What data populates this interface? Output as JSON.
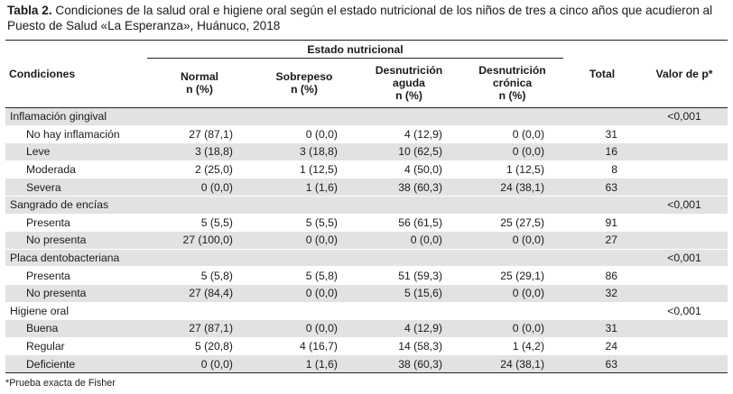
{
  "caption": {
    "label": "Tabla 2.",
    "text": " Condiciones de la salud oral e higiene oral según el estado nutricional de los niños de tres a cinco años que acudieron al Puesto de Salud «La Esperanza», Huánuco, 2018"
  },
  "header": {
    "group": "Estado nutricional",
    "condiciones": "Condiciones",
    "cols": [
      {
        "line1": "Normal",
        "line2": "",
        "line3": "n (%)"
      },
      {
        "line1": "Sobrepeso",
        "line2": "",
        "line3": "n (%)"
      },
      {
        "line1": "Desnutrición",
        "line2": "aguda",
        "line3": "n (%)"
      },
      {
        "line1": "Desnutrición",
        "line2": "crónica",
        "line3": "n (%)"
      }
    ],
    "total": "Total",
    "pvalue": "Valor de p*"
  },
  "rows": [
    {
      "label": "Inflamación gingival",
      "group": true,
      "cells": [
        "",
        "",
        "",
        ""
      ],
      "total": "",
      "p": "<0,001"
    },
    {
      "label": "No hay inflamación",
      "group": false,
      "cells": [
        "27 (87,1)",
        "0 (0,0)",
        "4 (12,9)",
        "0 (0,0)"
      ],
      "total": "31",
      "p": ""
    },
    {
      "label": "Leve",
      "group": false,
      "cells": [
        "3 (18,8)",
        "3 (18,8)",
        "10 (62,5)",
        "0 (0,0)"
      ],
      "total": "16",
      "p": ""
    },
    {
      "label": "Moderada",
      "group": false,
      "cells": [
        "2 (25,0)",
        "1 (12,5)",
        "4 (50,0)",
        "1 (12,5)"
      ],
      "total": "8",
      "p": ""
    },
    {
      "label": "Severa",
      "group": false,
      "cells": [
        "0 (0,0)",
        "1 (1,6)",
        "38 (60,3)",
        "24 (38,1)"
      ],
      "total": "63",
      "p": ""
    },
    {
      "label": "Sangrado de encías",
      "group": true,
      "cells": [
        "",
        "",
        "",
        ""
      ],
      "total": "",
      "p": "<0,001"
    },
    {
      "label": "Presenta",
      "group": false,
      "cells": [
        "5 (5,5)",
        "5 (5,5)",
        "56 (61,5)",
        "25 (27,5)"
      ],
      "total": "91",
      "p": ""
    },
    {
      "label": "No presenta",
      "group": false,
      "cells": [
        "27 (100,0)",
        "0 (0,0)",
        "0 (0,0)",
        "0 (0,0)"
      ],
      "total": "27",
      "p": ""
    },
    {
      "label": "Placa dentobacteriana",
      "group": true,
      "cells": [
        "",
        "",
        "",
        ""
      ],
      "total": "",
      "p": "<0,001"
    },
    {
      "label": "Presenta",
      "group": false,
      "cells": [
        "5 (5,8)",
        "5 (5,8)",
        "51 (59,3)",
        "25 (29,1)"
      ],
      "total": "86",
      "p": ""
    },
    {
      "label": "No presenta",
      "group": false,
      "cells": [
        "27 (84,4)",
        "0 (0,0)",
        "5 (15,6)",
        "0 (0,0)"
      ],
      "total": "32",
      "p": ""
    },
    {
      "label": "Higiene oral",
      "group": true,
      "cells": [
        "",
        "",
        "",
        ""
      ],
      "total": "",
      "p": "<0,001"
    },
    {
      "label": "Buena",
      "group": false,
      "cells": [
        "27 (87,1)",
        "0 (0,0)",
        "4 (12,9)",
        "0 (0,0)"
      ],
      "total": "31",
      "p": ""
    },
    {
      "label": "Regular",
      "group": false,
      "cells": [
        "5 (20,8)",
        "4 (16,7)",
        "14 (58,3)",
        "1 (4,2)"
      ],
      "total": "24",
      "p": ""
    },
    {
      "label": "Deficiente",
      "group": false,
      "cells": [
        "0 (0,0)",
        "1 (1,6)",
        "38 (60,3)",
        "24 (38,1)"
      ],
      "total": "63",
      "p": ""
    }
  ],
  "shading": [
    true,
    false,
    true,
    false,
    true,
    true,
    false,
    true,
    true,
    false,
    true,
    false,
    true,
    false,
    true
  ],
  "shade_color": "#e2e2e2",
  "footnote": "*Prueba exacta de Fisher"
}
